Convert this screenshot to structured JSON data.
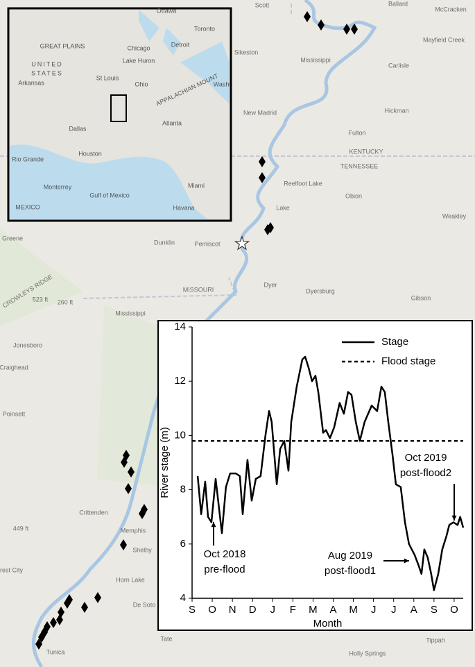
{
  "map": {
    "labels": [
      "Scott",
      "Ballard",
      "McCracken",
      "Mayfield Creek",
      "Sikeston",
      "Mississippi",
      "Carlisle",
      "Hickman",
      "New Madrid",
      "Fulton",
      "KENTUCKY",
      "TENNESSEE",
      "Reelfoot Lake",
      "Lake",
      "Obion",
      "Weakley",
      "Dunklin",
      "Pemiscot",
      "Dyer",
      "MISSOURI",
      "Dyersburg",
      "Gibson",
      "Greene",
      "CROWLEYS RIDGE",
      "523 ft",
      "260 ft",
      "Mississippi",
      "Jonesboro",
      "Craighead",
      "Poinsett",
      "Crittenden",
      "449 ft",
      "Memphis",
      "Shelby",
      "rrest City",
      "Horn Lake",
      "De Soto",
      "Tunica",
      "Tate",
      "Tippah",
      "Holly Springs"
    ]
  },
  "inset": {
    "labels": [
      "Ottawa",
      "Lake Huron",
      "Toronto",
      "Chicago",
      "Detroit",
      "GREAT PLAINS",
      "UNITED",
      "STATES",
      "Arkansas",
      "St Louis",
      "Ohio",
      "APPALACHIAN MOUNT",
      "Washi",
      "Dallas",
      "Atlanta",
      "Houston",
      "Rio Grande",
      "Monterrey",
      "Gulf of Mexico",
      "Miami",
      "Havana",
      "MEXICO"
    ]
  },
  "chart_data": {
    "type": "line",
    "y_label": "River stage (m)",
    "x_label": "Month",
    "xlim": [
      0,
      13.45
    ],
    "ylim": [
      4,
      14
    ],
    "yticks": [
      4,
      6,
      8,
      10,
      12,
      14
    ],
    "xticks": [
      {
        "value": 0,
        "label": "S"
      },
      {
        "value": 1,
        "label": "O"
      },
      {
        "value": 2,
        "label": "N"
      },
      {
        "value": 3,
        "label": "D"
      },
      {
        "value": 4,
        "label": "J"
      },
      {
        "value": 5,
        "label": "F"
      },
      {
        "value": 6,
        "label": "M"
      },
      {
        "value": 7,
        "label": "A"
      },
      {
        "value": 8,
        "label": "M"
      },
      {
        "value": 9,
        "label": "J"
      },
      {
        "value": 10,
        "label": "J"
      },
      {
        "value": 11,
        "label": "A"
      },
      {
        "value": 12,
        "label": "S"
      },
      {
        "value": 13,
        "label": "O"
      }
    ],
    "series": [
      {
        "name": "Stage",
        "color": "#000000",
        "dash": false,
        "x": [
          0.28,
          0.45,
          0.65,
          0.79,
          0.96,
          1.17,
          1.48,
          1.68,
          1.89,
          2.17,
          2.37,
          2.51,
          2.75,
          2.96,
          3.16,
          3.4,
          3.64,
          3.82,
          3.95,
          4.2,
          4.37,
          4.57,
          4.78,
          4.92,
          5.19,
          5.47,
          5.61,
          5.78,
          5.95,
          6.12,
          6.26,
          6.5,
          6.64,
          6.84,
          7.05,
          7.32,
          7.53,
          7.74,
          7.91,
          8.12,
          8.32,
          8.56,
          8.91,
          9.18,
          9.39,
          9.56,
          9.73,
          9.94,
          10.11,
          10.35,
          10.56,
          10.76,
          11.04,
          11.24,
          11.38,
          11.52,
          11.69,
          11.86,
          12.0,
          12.21,
          12.41,
          12.62,
          12.76,
          12.96,
          13.17,
          13.3,
          13.45
        ],
        "values": [
          8.5,
          7.1,
          8.3,
          7.0,
          6.8,
          8.4,
          6.4,
          8.1,
          8.6,
          8.6,
          8.5,
          7.1,
          9.1,
          7.6,
          8.4,
          8.5,
          10.0,
          10.9,
          10.5,
          8.2,
          9.5,
          9.8,
          8.7,
          10.5,
          11.8,
          12.8,
          12.9,
          12.5,
          12.0,
          12.2,
          11.6,
          10.1,
          10.2,
          9.9,
          10.3,
          11.2,
          10.8,
          11.6,
          11.5,
          10.5,
          9.8,
          10.5,
          11.1,
          10.9,
          11.8,
          11.6,
          10.5,
          9.3,
          8.2,
          8.1,
          6.8,
          6.0,
          5.6,
          5.2,
          4.9,
          5.8,
          5.5,
          4.9,
          4.3,
          4.9,
          5.8,
          6.3,
          6.7,
          6.8,
          6.7,
          7.0,
          6.6
        ]
      },
      {
        "name": "Flood stage",
        "color": "#000000",
        "dash": true,
        "x": [
          0,
          13.45
        ],
        "values": [
          9.8,
          9.8
        ]
      }
    ],
    "annotations": [
      [
        "Oct 2018",
        "pre-flood"
      ],
      [
        "Aug 2019",
        "post-flood1"
      ],
      [
        "Oct 2019",
        "post-flood2"
      ]
    ]
  }
}
